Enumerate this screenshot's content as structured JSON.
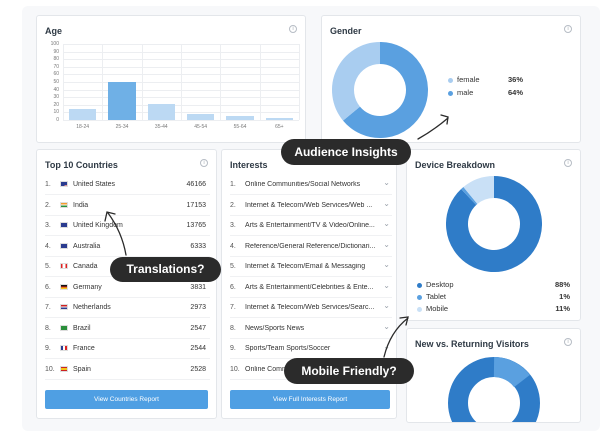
{
  "age": {
    "title": "Age",
    "info_icon": "ⓘ",
    "y_ticks": [
      "100",
      "90",
      "80",
      "70",
      "60",
      "50",
      "40",
      "30",
      "20",
      "10",
      "0"
    ],
    "chart_data": {
      "type": "bar",
      "categories": [
        "18-24",
        "25-34",
        "35-44",
        "45-54",
        "55-64",
        "65+"
      ],
      "values": [
        15,
        50,
        21,
        8,
        5,
        2
      ],
      "ylim": [
        0,
        100
      ],
      "colors": [
        "#bcd9f3",
        "#6fb0e6",
        "#bcd9f3",
        "#bcd9f3",
        "#bcd9f3",
        "#bcd9f3"
      ]
    }
  },
  "gender": {
    "title": "Gender",
    "info_icon": "ⓘ",
    "chart_data": {
      "type": "pie",
      "labels": [
        "female",
        "male"
      ],
      "values": [
        36,
        64
      ],
      "colors": [
        "#a9cdf0",
        "#5aa0e0"
      ]
    },
    "legend": [
      {
        "label": "female",
        "value": "36%",
        "color": "#a9cdf0"
      },
      {
        "label": "male",
        "value": "64%",
        "color": "#5aa0e0"
      }
    ]
  },
  "countries": {
    "title": "Top 10 Countries",
    "info_icon": "ⓘ",
    "rows": [
      {
        "rank": "1.",
        "name": "United States",
        "value": "46166",
        "flag": "us"
      },
      {
        "rank": "2.",
        "name": "India",
        "value": "17153",
        "flag": "in"
      },
      {
        "rank": "3.",
        "name": "United Kingdom",
        "value": "13765",
        "flag": "uk"
      },
      {
        "rank": "4.",
        "name": "Australia",
        "value": "6333",
        "flag": "au"
      },
      {
        "rank": "5.",
        "name": "Canada",
        "value": "",
        "flag": "ca"
      },
      {
        "rank": "6.",
        "name": "Germany",
        "value": "3831",
        "flag": "de"
      },
      {
        "rank": "7.",
        "name": "Netherlands",
        "value": "2973",
        "flag": "nl"
      },
      {
        "rank": "8.",
        "name": "Brazil",
        "value": "2547",
        "flag": "br"
      },
      {
        "rank": "9.",
        "name": "France",
        "value": "2544",
        "flag": "fr"
      },
      {
        "rank": "10.",
        "name": "Spain",
        "value": "2528",
        "flag": "es"
      }
    ],
    "button": "View Countries Report"
  },
  "interests": {
    "title": "Interests",
    "rows": [
      {
        "rank": "1.",
        "text": "Online Communities/Social Networks"
      },
      {
        "rank": "2.",
        "text": "Internet & Telecom/Web Services/Web ..."
      },
      {
        "rank": "3.",
        "text": "Arts & Entertainment/TV & Video/Online..."
      },
      {
        "rank": "4.",
        "text": "Reference/General Reference/Dictionari..."
      },
      {
        "rank": "5.",
        "text": "Internet & Telecom/Email & Messaging"
      },
      {
        "rank": "6.",
        "text": "Arts & Entertainment/Celebrities & Ente..."
      },
      {
        "rank": "7.",
        "text": "Internet & Telecom/Web Services/Searc..."
      },
      {
        "rank": "8.",
        "text": "News/Sports News"
      },
      {
        "rank": "9.",
        "text": "Sports/Team Sports/Soccer"
      },
      {
        "rank": "10.",
        "text": "Online Comm"
      }
    ],
    "chevron": "⌄",
    "button": "View Full Interests Report"
  },
  "device": {
    "title": "Device Breakdown",
    "info_icon": "ⓘ",
    "chart_data": {
      "type": "pie",
      "labels": [
        "Desktop",
        "Tablet",
        "Mobile"
      ],
      "values": [
        88,
        1,
        11
      ],
      "colors": [
        "#2f7cc8",
        "#5aa0e0",
        "#c9e0f6"
      ]
    },
    "legend": [
      {
        "label": "Desktop",
        "value": "88%",
        "color": "#2f7cc8"
      },
      {
        "label": "Tablet",
        "value": "1%",
        "color": "#5aa0e0"
      },
      {
        "label": "Mobile",
        "value": "11%",
        "color": "#c9e0f6"
      }
    ]
  },
  "returning": {
    "title": "New vs. Returning Visitors",
    "info_icon": "ⓘ",
    "colors": [
      "#2f7cc8",
      "#5aa0e0"
    ]
  },
  "callouts": {
    "audience": "Audience Insights",
    "translations": "Translations?",
    "mobile": "Mobile Friendly?"
  }
}
